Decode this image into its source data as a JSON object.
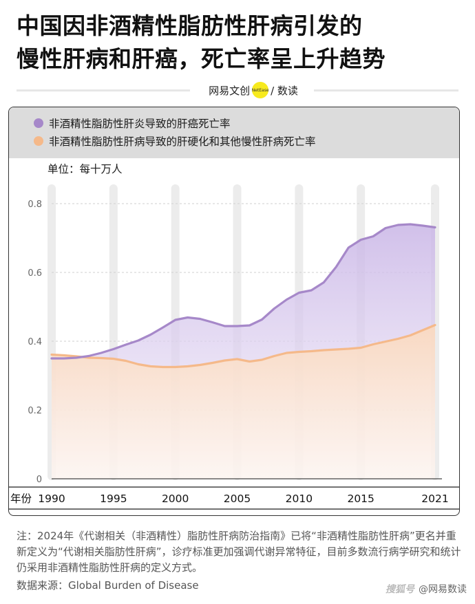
{
  "title_lines": [
    "中国因非酒精性脂肪性肝病引发的",
    "慢性肝病和肝癌，死亡率呈上升趋势"
  ],
  "brand": {
    "name": "网易文创",
    "badge": "NetEase",
    "section": "/ 数读"
  },
  "note": "注：2024年《代谢相关（非酒精性）脂肪性肝病防治指南》已将“非酒精性脂肪性肝病”更名并重新定义为“代谢相关脂肪性肝病”，诊疗标准更加强调代谢异常特征，目前多数流行病学研究和统计仍采用非酒精性脂肪性肝病的定义方式。",
  "source": "数据来源：Global Burden of Disease",
  "watermark": {
    "left": "搜狐号",
    "right": "@网易数读"
  },
  "colors": {
    "purple": "#a688c9",
    "orange": "#f5b98a",
    "legend_bg": "#dcdcdc"
  },
  "chart_data": {
    "type": "area",
    "unit_label": "单位：每十万人",
    "xlabel": "年份",
    "x_ticks": [
      1990,
      1995,
      2000,
      2005,
      2010,
      2015,
      2021
    ],
    "y_ticks": [
      "0",
      "0.2",
      "0.4",
      "0.6",
      "0.8"
    ],
    "ylim": [
      0,
      0.8
    ],
    "xlim": [
      1990,
      2021
    ],
    "legend_position": "top",
    "grid": "dashed horizontal",
    "x": [
      1990,
      1991,
      1992,
      1993,
      1994,
      1995,
      1996,
      1997,
      1998,
      1999,
      2000,
      2001,
      2002,
      2003,
      2004,
      2005,
      2006,
      2007,
      2008,
      2009,
      2010,
      2011,
      2012,
      2013,
      2014,
      2015,
      2016,
      2017,
      2018,
      2019,
      2020,
      2021
    ],
    "series": [
      {
        "name": "非酒精性脂肪性肝炎导致的肝癌死亡率",
        "color": "#a688c9",
        "values": [
          0.35,
          0.35,
          0.352,
          0.357,
          0.366,
          0.377,
          0.39,
          0.402,
          0.419,
          0.44,
          0.462,
          0.469,
          0.465,
          0.455,
          0.444,
          0.444,
          0.446,
          0.463,
          0.495,
          0.521,
          0.541,
          0.548,
          0.571,
          0.616,
          0.672,
          0.695,
          0.705,
          0.729,
          0.738,
          0.74,
          0.736,
          0.731
        ]
      },
      {
        "name": "非酒精性脂肪性肝病导致的肝硬化和其他慢性肝病死亡率",
        "color": "#f5b98a",
        "values": [
          0.361,
          0.359,
          0.356,
          0.352,
          0.351,
          0.349,
          0.343,
          0.333,
          0.327,
          0.325,
          0.325,
          0.327,
          0.331,
          0.337,
          0.344,
          0.348,
          0.341,
          0.346,
          0.357,
          0.366,
          0.369,
          0.371,
          0.374,
          0.376,
          0.378,
          0.381,
          0.391,
          0.399,
          0.407,
          0.417,
          0.432,
          0.447
        ]
      }
    ]
  }
}
